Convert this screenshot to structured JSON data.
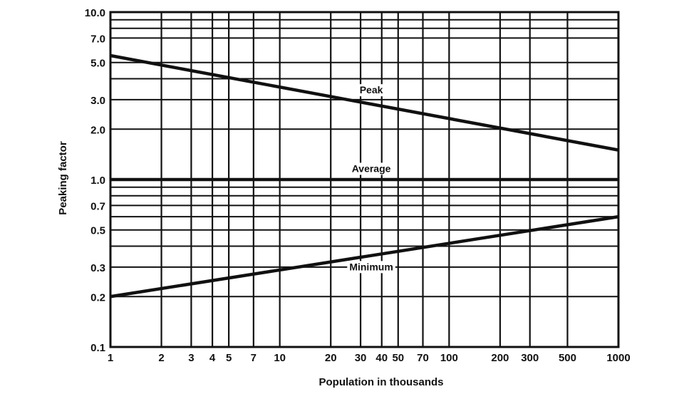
{
  "chart_data": {
    "type": "line",
    "title": "",
    "xlabel": "Population in thousands",
    "ylabel": "Peaking factor",
    "xscale": "log",
    "yscale": "log",
    "xlim": [
      1,
      1000
    ],
    "ylim": [
      0.1,
      10
    ],
    "grid": true,
    "x_ticks": [
      1,
      2,
      3,
      4,
      5,
      7,
      10,
      20,
      30,
      40,
      50,
      70,
      100,
      200,
      300,
      500,
      1000
    ],
    "x_tick_labels": [
      "1",
      "2",
      "3",
      "4",
      "5",
      "7",
      "10",
      "20",
      "30",
      "40",
      "50",
      "70",
      "100",
      "200",
      "300",
      "500",
      "1000"
    ],
    "y_ticks": [
      10,
      7,
      5,
      3,
      2,
      1,
      0.7,
      0.5,
      0.3,
      0.2,
      0.1
    ],
    "y_tick_labels": [
      "10.0",
      "7.0",
      "5.0",
      "3.0",
      "2.0",
      "1.0",
      "0.7",
      "0.5",
      "0.3",
      "0.2",
      "0.1"
    ],
    "y_gridlines": [
      10,
      9,
      8,
      7,
      5,
      4,
      3,
      2,
      1,
      0.9,
      0.8,
      0.7,
      0.6,
      0.5,
      0.4,
      0.3,
      0.2,
      0.1
    ],
    "series": [
      {
        "name": "Peak",
        "x": [
          1,
          1000
        ],
        "y": [
          5.5,
          1.5
        ],
        "label_at": [
          30,
          3.3
        ]
      },
      {
        "name": "Average",
        "x": [
          1,
          1000
        ],
        "y": [
          1.0,
          1.0
        ],
        "label_at": [
          30,
          1.12
        ]
      },
      {
        "name": "Minimum",
        "x": [
          1,
          1000
        ],
        "y": [
          0.2,
          0.6
        ],
        "label_at": [
          30,
          0.29
        ]
      }
    ],
    "line_color": "#111111"
  }
}
